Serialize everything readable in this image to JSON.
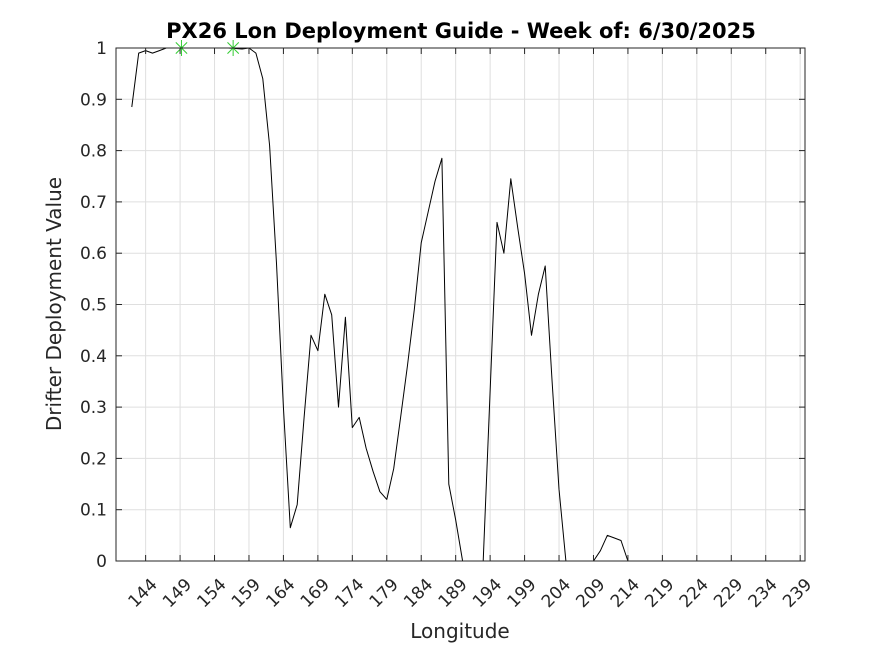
{
  "chart_data": {
    "type": "line",
    "title": "PX26 Lon Deployment Guide - Week of: 6/30/2025",
    "xlabel": "Longitude",
    "ylabel": "Drifter Deployment Value",
    "xlim": [
      139.7,
      239.7
    ],
    "ylim": [
      0,
      1
    ],
    "grid": true,
    "x_ticks": [
      144,
      149,
      154,
      159,
      164,
      169,
      174,
      179,
      184,
      189,
      194,
      199,
      204,
      209,
      214,
      219,
      224,
      229,
      234,
      239
    ],
    "y_ticks": [
      "0",
      "0.1",
      "0.2",
      "0.3",
      "0.4",
      "0.5",
      "0.6",
      "0.7",
      "0.8",
      "0.9",
      "1"
    ],
    "series": [
      {
        "color": "#000000",
        "x": [
          142,
          143,
          144,
          145,
          146,
          147,
          148,
          149,
          150,
          151,
          152,
          153,
          154,
          155,
          156,
          157,
          158,
          159,
          160,
          161,
          162,
          163,
          164,
          165,
          166,
          167,
          168,
          169,
          170,
          171,
          172,
          173,
          174,
          175,
          176,
          177,
          178,
          179,
          180,
          181,
          182,
          183,
          184,
          185,
          186,
          187,
          188,
          189,
          190,
          191,
          192,
          193,
          194,
          195,
          196,
          197,
          198,
          199,
          200,
          201,
          202,
          203,
          204,
          205,
          206,
          207,
          208,
          209,
          210,
          211,
          212,
          213,
          214,
          215,
          216,
          217,
          218,
          219,
          220,
          221,
          222,
          223,
          224,
          225,
          226,
          227,
          228,
          229,
          230,
          231,
          232,
          233,
          234,
          235,
          236,
          237,
          238,
          239
        ],
        "y": [
          0.885,
          0.99,
          0.995,
          0.99,
          0.995,
          1,
          1,
          1,
          1,
          1,
          1,
          1,
          1,
          1,
          1,
          0.999,
          0.998,
          1,
          0.99,
          0.94,
          0.81,
          0.58,
          0.3,
          0.065,
          0.11,
          0.28,
          0.44,
          0.41,
          0.52,
          0.48,
          0.3,
          0.475,
          0.26,
          0.28,
          0.22,
          0.175,
          0.135,
          0.12,
          0.18,
          0.28,
          0.38,
          0.49,
          0.62,
          0.68,
          0.74,
          0.785,
          0.15,
          0.08,
          0,
          0,
          0,
          0,
          0.33,
          0.66,
          0.6,
          0.745,
          0.65,
          0.56,
          0.44,
          0.52,
          0.575,
          0.35,
          0.14,
          0,
          0,
          0,
          0,
          0,
          0.02,
          0.05,
          0.045,
          0.04,
          0,
          0,
          0,
          0,
          0,
          0,
          0,
          0,
          0,
          0,
          0,
          0,
          0,
          0,
          0,
          0,
          0,
          0,
          0,
          0,
          0,
          0,
          0,
          0,
          0,
          0
        ]
      },
      {
        "marker": "asterisk",
        "color": "#33cc33",
        "x": [
          149.2,
          156.7
        ],
        "y": [
          1,
          1
        ]
      }
    ]
  }
}
